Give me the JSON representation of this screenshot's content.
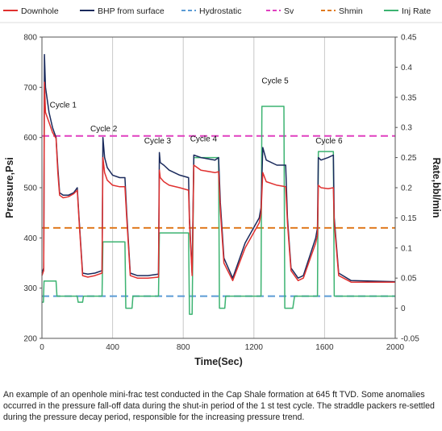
{
  "caption": "An example of an openhole mini-frac test conducted in the Cap Shale formation at 645 ft TVD. Some anomalies occurred in the pressure fall-off data during the shut-in period of the 1 st test cycle. The straddle packers re-settled during the pressure decay period, responsible for the increasing pressure trend.",
  "colors": {
    "downhole": "#e0302f",
    "bhp": "#1a2a5c",
    "hydrostatic": "#5b9bd5",
    "sv": "#e040c0",
    "shmin": "#e07a1f",
    "inj": "#3cb371"
  },
  "chart_data": {
    "type": "line",
    "xlabel": "Time(Sec)",
    "ylabel": "Pressure,Psi",
    "y2label": "Rate,bbl/min",
    "xlim": [
      0,
      2000
    ],
    "ylim": [
      200,
      800
    ],
    "y2lim": [
      -0.05,
      0.45
    ],
    "xticks": [
      "0",
      "400",
      "800",
      "1200",
      "1600",
      "2000"
    ],
    "yticks": [
      "200",
      "300",
      "400",
      "500",
      "600",
      "700",
      "800"
    ],
    "y2ticks": [
      "-0.05",
      "0",
      "0.05",
      "0.1",
      "0.15",
      "0.2",
      "0.25",
      "0.3",
      "0.35",
      "0.4",
      "0.45"
    ],
    "grid": "vertical at x ticks",
    "legend": [
      "Downhole",
      "BHP from surface",
      "Hydrostatic",
      "Sv",
      "Shmin",
      "Inj Rate"
    ],
    "annotations": [
      {
        "text": "Cycle 1",
        "x": 120,
        "y": 660
      },
      {
        "text": "Cycle 2",
        "x": 350,
        "y": 612
      },
      {
        "text": "Cycle 3",
        "x": 655,
        "y": 588
      },
      {
        "text": "Cycle 4",
        "x": 915,
        "y": 592
      },
      {
        "text": "Cycle 5",
        "x": 1320,
        "y": 708
      },
      {
        "text": "Cycle 6",
        "x": 1625,
        "y": 588
      }
    ],
    "series": [
      {
        "name": "Sv",
        "axis": "left",
        "style": "dashed",
        "x": [
          0,
          2000
        ],
        "y": [
          603,
          603
        ]
      },
      {
        "name": "Shmin",
        "axis": "left",
        "style": "dashed",
        "x": [
          0,
          2000
        ],
        "y": [
          420,
          420
        ]
      },
      {
        "name": "Hydrostatic",
        "axis": "left",
        "style": "dashed",
        "x": [
          0,
          2000
        ],
        "y": [
          284,
          284
        ]
      },
      {
        "name": "Inj Rate",
        "axis": "right",
        "style": "solid",
        "x": [
          0,
          8,
          12,
          80,
          85,
          200,
          205,
          230,
          235,
          340,
          345,
          470,
          475,
          510,
          515,
          660,
          665,
          830,
          835,
          850,
          860,
          1000,
          1005,
          1035,
          1040,
          1240,
          1245,
          1370,
          1375,
          1420,
          1430,
          1560,
          1565,
          1650,
          1655,
          2000
        ],
        "y": [
          0.01,
          0.01,
          0.045,
          0.045,
          0.02,
          0.02,
          0.01,
          0.01,
          0.02,
          0.02,
          0.11,
          0.11,
          0.0,
          0.0,
          0.02,
          0.02,
          0.125,
          0.125,
          -0.01,
          -0.01,
          0.25,
          0.25,
          0.0,
          0.0,
          0.02,
          0.02,
          0.335,
          0.335,
          0.0,
          0.0,
          0.02,
          0.02,
          0.26,
          0.26,
          0.02,
          0.02
        ]
      },
      {
        "name": "BHP from surface",
        "axis": "left",
        "style": "solid",
        "x": [
          0,
          10,
          14,
          20,
          40,
          60,
          80,
          90,
          100,
          120,
          150,
          180,
          200,
          210,
          230,
          260,
          300,
          340,
          345,
          355,
          370,
          400,
          440,
          470,
          480,
          500,
          540,
          600,
          660,
          665,
          670,
          690,
          720,
          780,
          830,
          835,
          850,
          860,
          900,
          980,
          1000,
          1010,
          1030,
          1080,
          1150,
          1230,
          1240,
          1250,
          1270,
          1330,
          1380,
          1390,
          1410,
          1450,
          1480,
          1550,
          1560,
          1565,
          1580,
          1620,
          1650,
          1655,
          1680,
          1750,
          2000
        ],
        "y": [
          330,
          340,
          765,
          700,
          650,
          620,
          600,
          540,
          490,
          485,
          485,
          490,
          500,
          440,
          330,
          328,
          330,
          335,
          600,
          560,
          540,
          525,
          520,
          520,
          450,
          330,
          325,
          325,
          328,
          570,
          550,
          545,
          535,
          525,
          520,
          440,
          330,
          565,
          560,
          555,
          560,
          470,
          360,
          320,
          390,
          440,
          460,
          580,
          555,
          545,
          545,
          440,
          340,
          320,
          325,
          400,
          420,
          560,
          555,
          560,
          565,
          440,
          330,
          315,
          313
        ]
      },
      {
        "name": "Downhole",
        "axis": "left",
        "style": "solid",
        "x": [
          0,
          10,
          14,
          20,
          40,
          60,
          80,
          90,
          100,
          120,
          150,
          180,
          200,
          210,
          230,
          260,
          300,
          340,
          345,
          355,
          370,
          400,
          440,
          470,
          480,
          500,
          540,
          600,
          660,
          665,
          670,
          690,
          720,
          780,
          830,
          835,
          850,
          860,
          900,
          980,
          1000,
          1010,
          1030,
          1080,
          1150,
          1230,
          1240,
          1250,
          1270,
          1330,
          1380,
          1390,
          1410,
          1450,
          1480,
          1550,
          1560,
          1565,
          1580,
          1620,
          1650,
          1655,
          1680,
          1750,
          2000
        ],
        "y": [
          325,
          335,
          710,
          650,
          630,
          610,
          598,
          530,
          485,
          480,
          482,
          488,
          495,
          435,
          325,
          322,
          325,
          330,
          560,
          530,
          515,
          505,
          502,
          502,
          440,
          325,
          320,
          320,
          322,
          535,
          520,
          512,
          505,
          500,
          495,
          430,
          325,
          545,
          535,
          530,
          532,
          455,
          350,
          315,
          380,
          430,
          448,
          530,
          512,
          505,
          502,
          430,
          335,
          315,
          320,
          390,
          405,
          505,
          500,
          498,
          500,
          430,
          325,
          312,
          312
        ]
      }
    ]
  }
}
